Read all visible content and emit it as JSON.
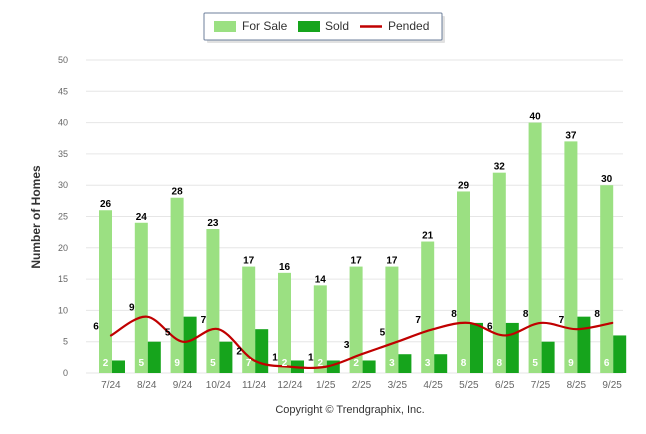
{
  "chart_data": {
    "type": "bar",
    "categories": [
      "7/24",
      "8/24",
      "9/24",
      "10/24",
      "11/24",
      "12/24",
      "1/25",
      "2/25",
      "3/25",
      "4/25",
      "5/25",
      "6/25",
      "7/25",
      "8/25",
      "9/25"
    ],
    "series": [
      {
        "name": "For Sale",
        "type": "bar",
        "color": "#9be082",
        "values": [
          26,
          24,
          28,
          23,
          17,
          16,
          14,
          17,
          17,
          21,
          29,
          32,
          40,
          37,
          30
        ]
      },
      {
        "name": "Sold",
        "type": "bar",
        "color": "#16a41c",
        "values": [
          2,
          5,
          9,
          5,
          7,
          2,
          2,
          2,
          3,
          3,
          8,
          8,
          5,
          9,
          6
        ]
      },
      {
        "name": "Pended",
        "type": "line",
        "color": "#c00000",
        "values": [
          6,
          9,
          5,
          7,
          2,
          1,
          1,
          3,
          5,
          7,
          8,
          6,
          8,
          7,
          8
        ]
      }
    ],
    "ylabel": "Number of Homes",
    "xlabel": "",
    "ylim": [
      0,
      50
    ],
    "yticks": [
      0,
      5,
      10,
      15,
      20,
      25,
      30,
      35,
      40,
      45,
      50
    ],
    "grid": true,
    "legend_position": "top-center"
  },
  "footer": {
    "copyright": "Copyright © Trendgraphix, Inc."
  }
}
